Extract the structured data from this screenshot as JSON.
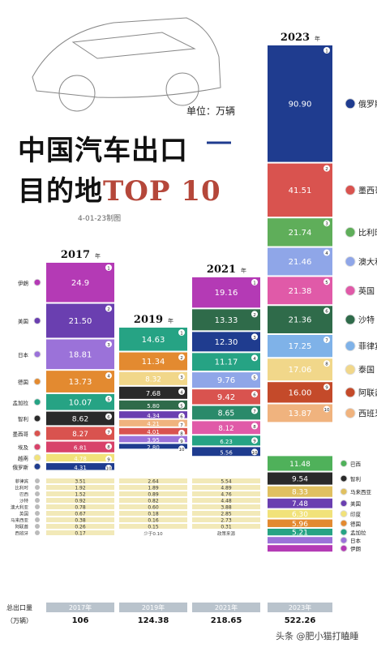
{
  "header": {
    "title_line1": "中国汽车出口",
    "title_line2_a": "目的地",
    "title_line2_b": "TOP 10",
    "unit": "单位：万辆",
    "date_note": "4-01-23制图",
    "footer": "头条 @肥小猫打瞌睡",
    "total_label": "总出口量",
    "total_unit": "（万辆）"
  },
  "colors": {
    "russia": "#1f3c8f",
    "mexico": "#d9534f",
    "belgium": "#5fae5a",
    "australia": "#8fa6e8",
    "uk": "#e05aa8",
    "saudi": "#2f6b4a",
    "philippines": "#7fb2e8",
    "thailand": "#f1d78a",
    "uae": "#c44a2a",
    "spain": "#f0b37e",
    "iran": "#b43ab5",
    "usa": "#6a3fb0",
    "japan": "#9b72d9",
    "germany": "#e38a30",
    "bangladesh": "#26a384",
    "chile": "#2a2a2a",
    "egypt": "#d8426a",
    "vietnam": "#f1e27a",
    "malaysia": "#e0c060",
    "brazil": "#4fb15a",
    "peru": "#8fc0a0",
    "canada": "#e07070",
    "korea": "#b0b0b0"
  },
  "chart_data": {
    "type": "bar",
    "title": "中国汽车出口目的地TOP 10",
    "ylabel": "单位：万辆",
    "years": [
      {
        "year": "2017",
        "year_suffix": "年",
        "total": "106",
        "top10": [
          {
            "rank": "1",
            "country": "伊朗",
            "value": 24.9,
            "label": "24.9",
            "color": "#b43ab5"
          },
          {
            "rank": "2",
            "country": "美国",
            "value": 21.5,
            "label": "21.50",
            "color": "#6a3fb0"
          },
          {
            "rank": "3",
            "country": "日本",
            "value": 18.81,
            "label": "18.81",
            "color": "#9b72d9"
          },
          {
            "rank": "4",
            "country": "德国",
            "value": 13.73,
            "label": "13.73",
            "color": "#e38a30"
          },
          {
            "rank": "5",
            "country": "孟加拉",
            "value": 10.07,
            "label": "10.07",
            "color": "#26a384"
          },
          {
            "rank": "6",
            "country": "智利",
            "value": 8.62,
            "label": "8.62",
            "color": "#2a2a2a"
          },
          {
            "rank": "7",
            "country": "墨西哥",
            "value": 8.27,
            "label": "8.27",
            "color": "#d9534f"
          },
          {
            "rank": "8",
            "country": "埃及",
            "value": 6.81,
            "label": "6.81",
            "color": "#d8426a"
          },
          {
            "rank": "9",
            "country": "越南",
            "value": 4.78,
            "label": "4.78",
            "color": "#f1e27a"
          },
          {
            "rank": "10",
            "country": "俄罗斯",
            "value": 4.31,
            "label": "4.31",
            "color": "#1f3c8f"
          }
        ],
        "others": [
          {
            "country": "菲律宾",
            "label": "3.51"
          },
          {
            "country": "比利时",
            "label": "1.92"
          },
          {
            "country": "巴西",
            "label": "1.52"
          },
          {
            "country": "沙特",
            "label": "0.92"
          },
          {
            "country": "澳大利亚",
            "label": "0.78"
          },
          {
            "country": "英国",
            "label": "0.67"
          },
          {
            "country": "马来西亚",
            "label": "0.38"
          },
          {
            "country": "阿联酋",
            "label": "0.26"
          },
          {
            "country": "西班牙",
            "label": "0.17"
          }
        ]
      },
      {
        "year": "2019",
        "year_suffix": "年",
        "total": "124.38",
        "top10": [
          {
            "rank": "1",
            "country": "",
            "value": 14.63,
            "label": "14.63",
            "color": "#26a384"
          },
          {
            "rank": "2",
            "country": "",
            "value": 11.34,
            "label": "11.34",
            "color": "#e38a30"
          },
          {
            "rank": "3",
            "country": "",
            "value": 8.32,
            "label": "8.32",
            "color": "#f1d78a"
          },
          {
            "rank": "4",
            "country": "",
            "value": 7.68,
            "label": "7.68",
            "color": "#2a2a2a"
          },
          {
            "rank": "5",
            "country": "",
            "value": 5.8,
            "label": "5.80",
            "color": "#2f6b4a"
          },
          {
            "rank": "6",
            "country": "",
            "value": 4.34,
            "label": "4.34",
            "color": "#6a3fb0"
          },
          {
            "rank": "7",
            "country": "",
            "value": 4.21,
            "label": "4.21",
            "color": "#f0b37e"
          },
          {
            "rank": "8",
            "country": "",
            "value": 4.01,
            "label": "4.01",
            "color": "#d9534f"
          },
          {
            "rank": "9",
            "country": "",
            "value": 3.95,
            "label": "3.95",
            "color": "#9b72d9"
          },
          {
            "rank": "10",
            "country": "",
            "value": 2.8,
            "label": "2.80",
            "color": "#1f3c8f"
          }
        ],
        "others": [
          {
            "label": "2.64"
          },
          {
            "label": "1.89"
          },
          {
            "label": "0.89"
          },
          {
            "label": "0.82"
          },
          {
            "label": "0.60"
          },
          {
            "label": "0.18"
          },
          {
            "label": "0.16"
          },
          {
            "label": "0.15"
          }
        ],
        "others_note": "少于0.10"
      },
      {
        "year": "2021",
        "year_suffix": "年",
        "total": "218.65",
        "top10": [
          {
            "rank": "1",
            "country": "",
            "value": 19.16,
            "label": "19.16",
            "color": "#b43ab5"
          },
          {
            "rank": "2",
            "country": "",
            "value": 13.33,
            "label": "13.33",
            "color": "#2f6b4a"
          },
          {
            "rank": "3",
            "country": "",
            "value": 12.3,
            "label": "12.30",
            "color": "#1f3c8f"
          },
          {
            "rank": "4",
            "country": "",
            "value": 11.17,
            "label": "11.17",
            "color": "#26a384"
          },
          {
            "rank": "5",
            "country": "",
            "value": 9.76,
            "label": "9.76",
            "color": "#8fa6e8"
          },
          {
            "rank": "6",
            "country": "",
            "value": 9.42,
            "label": "9.42",
            "color": "#d9534f"
          },
          {
            "rank": "7",
            "country": "",
            "value": 8.65,
            "label": "8.65",
            "color": "#2a8a6a"
          },
          {
            "rank": "8",
            "country": "",
            "value": 8.12,
            "label": "8.12",
            "color": "#e05aa8"
          },
          {
            "rank": "9",
            "country": "",
            "value": 6.23,
            "label": "6.23",
            "color": "#26a384"
          },
          {
            "rank": "10",
            "country": "",
            "value": 5.56,
            "label": "5.56",
            "color": "#1f3c8f"
          }
        ],
        "others": [
          {
            "label": "5.54"
          },
          {
            "label": "4.89"
          },
          {
            "label": "4.76"
          },
          {
            "label": "4.48"
          },
          {
            "label": "3.88"
          },
          {
            "label": "2.85"
          },
          {
            "label": "2.73"
          },
          {
            "label": "0.31"
          }
        ],
        "others_note": "政策来源"
      },
      {
        "year": "2023",
        "year_suffix": "年",
        "total": "522.26",
        "top10": [
          {
            "rank": "1",
            "country": "俄罗斯",
            "value": 90.9,
            "label": "90.90",
            "color": "#1f3c8f"
          },
          {
            "rank": "2",
            "country": "墨西哥",
            "value": 41.51,
            "label": "41.51",
            "color": "#d9534f"
          },
          {
            "rank": "3",
            "country": "比利时",
            "value": 21.74,
            "label": "21.74",
            "color": "#5fae5a"
          },
          {
            "rank": "4",
            "country": "澳大利亚",
            "value": 21.46,
            "label": "21.46",
            "color": "#8fa6e8"
          },
          {
            "rank": "5",
            "country": "英国",
            "value": 21.38,
            "label": "21.38",
            "color": "#e05aa8"
          },
          {
            "rank": "6",
            "country": "沙特",
            "value": 21.36,
            "label": "21.36",
            "color": "#2f6b4a"
          },
          {
            "rank": "7",
            "country": "菲律宾",
            "value": 17.25,
            "label": "17.25",
            "color": "#7fb2e8"
          },
          {
            "rank": "8",
            "country": "泰国",
            "value": 17.06,
            "label": "17.06",
            "color": "#f1d78a"
          },
          {
            "rank": "9",
            "country": "阿联酋",
            "value": 16.0,
            "label": "16.00",
            "color": "#c44a2a"
          },
          {
            "rank": "10",
            "country": "西班牙",
            "value": 13.87,
            "label": "13.87",
            "color": "#f0b37e"
          }
        ],
        "others": [
          {
            "country": "巴西",
            "value": 11.48,
            "label": "11.48",
            "color": "#4fb15a"
          },
          {
            "country": "智利",
            "value": 9.54,
            "label": "9.54",
            "color": "#2a2a2a"
          },
          {
            "country": "马来西亚",
            "value": 8.33,
            "label": "8.33",
            "color": "#e0c060"
          },
          {
            "country": "美国",
            "value": 7.48,
            "label": "7.48",
            "color": "#6a3fb0"
          },
          {
            "country": "印度",
            "value": 6.3,
            "label": "6.30",
            "color": "#f1e27a"
          },
          {
            "country": "德国",
            "value": 5.96,
            "label": "5.96",
            "color": "#e38a30"
          },
          {
            "country": "孟加拉",
            "value": 5.21,
            "label": "5.21",
            "color": "#26a384"
          },
          {
            "country": "日本",
            "value": 2.6,
            "label": "",
            "color": "#9b72d9"
          },
          {
            "country": "伊朗",
            "value": 2.2,
            "label": "",
            "color": "#b43ab5"
          }
        ]
      }
    ]
  }
}
